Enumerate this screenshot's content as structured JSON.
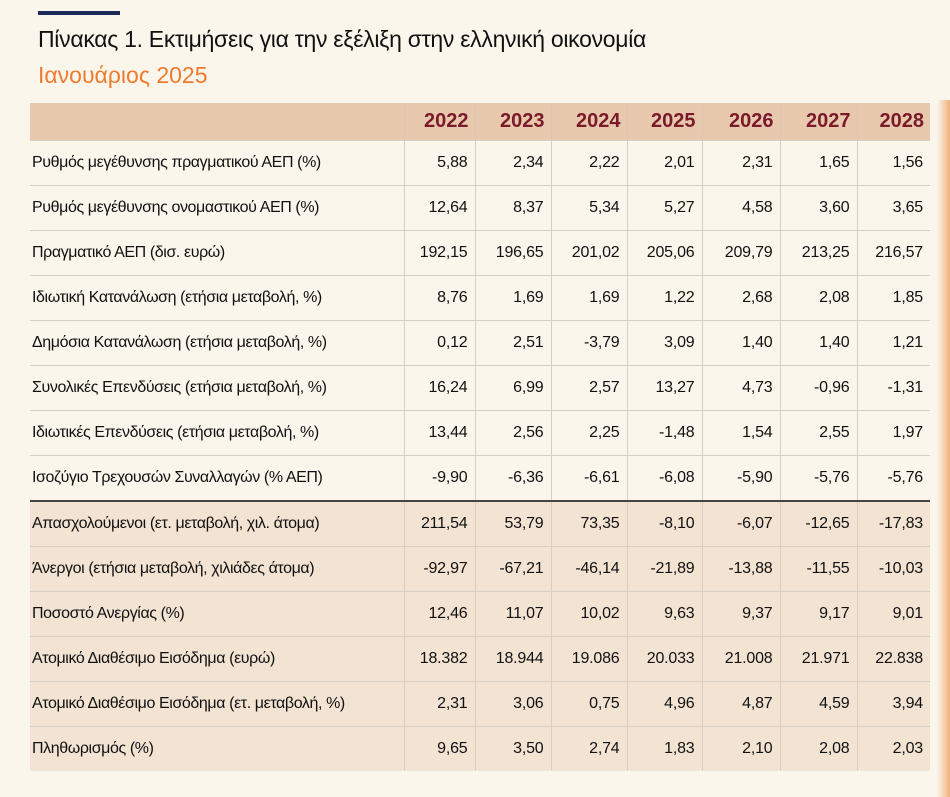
{
  "header": {
    "title": "Πίνακας 1. Εκτιμήσεις για την εξέλιξη στην ελληνική οικονομία",
    "subtitle": "Ιανουάριος 2025"
  },
  "table": {
    "columns": [
      "2022",
      "2023",
      "2024",
      "2025",
      "2026",
      "2027",
      "2028"
    ],
    "rows": [
      {
        "label": "Ρυθμός μεγέθυνσης πραγματικού ΑΕΠ  (%)",
        "values": [
          "5,88",
          "2,34",
          "2,22",
          "2,01",
          "2,31",
          "1,65",
          "1,56"
        ]
      },
      {
        "label": "Ρυθμός μεγέθυνσης ονομαστικού ΑΕΠ  (%)",
        "values": [
          "12,64",
          "8,37",
          "5,34",
          "5,27",
          "4,58",
          "3,60",
          "3,65"
        ]
      },
      {
        "label": "Πραγματικό ΑΕΠ (δισ. ευρώ)",
        "values": [
          "192,15",
          "196,65",
          "201,02",
          "205,06",
          "209,79",
          "213,25",
          "216,57"
        ]
      },
      {
        "label": "Ιδιωτική Κατανάλωση (ετήσια μεταβολή, %)",
        "values": [
          "8,76",
          "1,69",
          "1,69",
          "1,22",
          "2,68",
          "2,08",
          "1,85"
        ]
      },
      {
        "label": "Δημόσια Κατανάλωση (ετήσια μεταβολή, %)",
        "values": [
          "0,12",
          "2,51",
          "-3,79",
          "3,09",
          "1,40",
          "1,40",
          "1,21"
        ]
      },
      {
        "label": "Συνολικές Επενδύσεις (ετήσια μεταβολή, %)",
        "values": [
          "16,24",
          "6,99",
          "2,57",
          "13,27",
          "4,73",
          "-0,96",
          "-1,31"
        ]
      },
      {
        "label": "Ιδιωτικές Επενδύσεις (ετήσια μεταβολή, %)",
        "values": [
          "13,44",
          "2,56",
          "2,25",
          "-1,48",
          "1,54",
          "2,55",
          "1,97"
        ]
      },
      {
        "label": "Ισοζύγιο Τρεχουσών Συναλλαγών (% ΑΕΠ)",
        "values": [
          "-9,90",
          "-6,36",
          "-6,61",
          "-6,08",
          "-5,90",
          "-5,76",
          "-5,76"
        ]
      },
      {
        "label": "Απασχολούμενοι (ετ. μεταβολή, χιλ. άτομα)",
        "values": [
          "211,54",
          "53,79",
          "73,35",
          "-8,10",
          "-6,07",
          "-12,65",
          "-17,83"
        ]
      },
      {
        "label": "Άνεργοι (ετήσια μεταβολή, χιλιάδες άτομα)",
        "values": [
          "-92,97",
          "-67,21",
          "-46,14",
          "-21,89",
          "-13,88",
          "-11,55",
          "-10,03"
        ]
      },
      {
        "label": "Ποσοστό Ανεργίας (%)",
        "values": [
          "12,46",
          "11,07",
          "10,02",
          "9,63",
          "9,37",
          "9,17",
          "9,01"
        ]
      },
      {
        "label": "Ατομικό Διαθέσιμο Εισόδημα (ευρώ)",
        "values": [
          "18.382",
          "18.944",
          "19.086",
          "20.033",
          "21.008",
          "21.971",
          "22.838"
        ]
      },
      {
        "label": "Ατομικό Διαθέσιμο Εισόδημα (ετ. μεταβολή, %)",
        "values": [
          "2,31",
          "3,06",
          "0,75",
          "4,96",
          "4,87",
          "4,59",
          "3,94"
        ]
      },
      {
        "label": "Πληθωρισμός (%)",
        "values": [
          "9,65",
          "3,50",
          "2,74",
          "1,83",
          "2,10",
          "2,08",
          "2,03"
        ]
      }
    ]
  }
}
